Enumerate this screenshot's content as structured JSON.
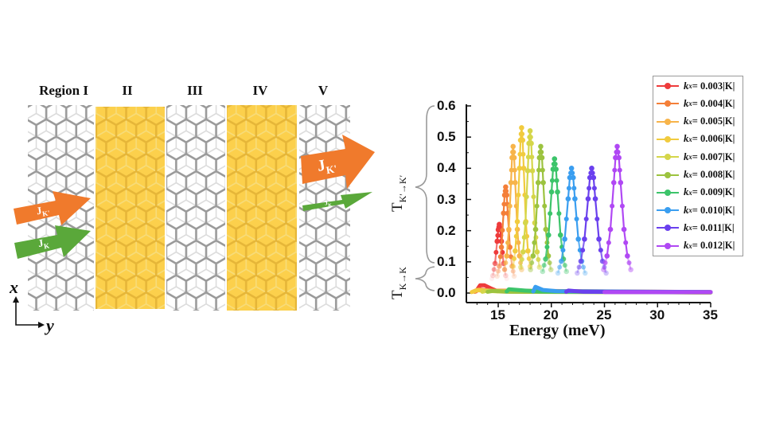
{
  "diagram": {
    "regions": [
      "Region I",
      "II",
      "III",
      "IV",
      "V"
    ],
    "arrow_j": "J",
    "arrow_kprime": "K'",
    "arrow_k": "K",
    "axis_x": "x",
    "axis_y": "y",
    "colors": {
      "barrier": "#fcd04c",
      "lattice": "#9a9a9a",
      "kprime_arrow": "#f07a2c",
      "k_arrow": "#5aa83a"
    }
  },
  "chart_data": {
    "type": "line",
    "xlabel": "Energy (meV)",
    "ylabel_upper": {
      "T": "T",
      "sub": "K′→K′"
    },
    "ylabel_lower": {
      "T": "T",
      "sub": "K→K"
    },
    "xlim": [
      12,
      35
    ],
    "ylim": [
      -0.03,
      0.6
    ],
    "xticks": [
      "15",
      "20",
      "25",
      "30",
      "35"
    ],
    "yticks": [
      "0.0",
      "0.1",
      "0.2",
      "0.3",
      "0.4",
      "0.5",
      "0.6"
    ],
    "grid": false,
    "legend_placement": "top-right",
    "legend_k": "k",
    "legend_sub": "x",
    "series": [
      {
        "name": "= 0.003|K|",
        "color": "#ee3b3b",
        "x": [
          14.3,
          14.5,
          14.7,
          14.9,
          15.0,
          15.1,
          15.2,
          15.3,
          15.5,
          15.7,
          15.9
        ],
        "y": [
          0.035,
          0.056,
          0.095,
          0.166,
          0.203,
          0.22,
          0.203,
          0.166,
          0.095,
          0.056,
          0.035
        ],
        "kk_x": [
          12.9,
          13.3,
          13.7,
          14.3,
          15.0,
          35
        ],
        "kk_y": [
          0.005,
          0.025,
          0.025,
          0.015,
          0.005,
          0.003
        ]
      },
      {
        "name": "= 0.004|K|",
        "color": "#f47f38",
        "x": [
          14.9,
          15.1,
          15.3,
          15.5,
          15.6,
          15.7,
          15.8,
          15.9,
          16.1,
          16.3,
          16.5
        ],
        "y": [
          0.054,
          0.086,
          0.147,
          0.256,
          0.314,
          0.34,
          0.314,
          0.256,
          0.147,
          0.086,
          0.054
        ],
        "kk_x": [
          12.8,
          13.2,
          14.0,
          35
        ],
        "kk_y": [
          0.004,
          0.012,
          0.008,
          0.003
        ]
      },
      {
        "name": "= 0.005|K|",
        "color": "#f7b44a",
        "x": [
          15.6,
          15.8,
          16.0,
          16.2,
          16.3,
          16.4,
          16.5,
          16.6,
          16.8,
          17.0,
          17.2
        ],
        "y": [
          0.075,
          0.119,
          0.204,
          0.354,
          0.434,
          0.47,
          0.434,
          0.354,
          0.204,
          0.119,
          0.075
        ],
        "kk_x": [
          12.6,
          13.0,
          14.0,
          35
        ],
        "kk_y": [
          0.004,
          0.01,
          0.007,
          0.002
        ]
      },
      {
        "name": "= 0.006|K|",
        "color": "#f1cb3e",
        "x": [
          16.4,
          16.6,
          16.8,
          17.0,
          17.1,
          17.2,
          17.3,
          17.4,
          17.6,
          17.8,
          18.0
        ],
        "y": [
          0.085,
          0.135,
          0.229,
          0.4,
          0.49,
          0.53,
          0.49,
          0.4,
          0.229,
          0.135,
          0.085
        ],
        "kk_x": [
          12.5,
          13.0,
          14.5,
          35
        ],
        "kk_y": [
          0.003,
          0.009,
          0.006,
          0.002
        ]
      },
      {
        "name": "= 0.007|K|",
        "color": "#d5d64a",
        "x": [
          17.12,
          17.34,
          17.56,
          17.78,
          17.89,
          18.0,
          18.11,
          18.22,
          18.44,
          18.66,
          18.88
        ],
        "y": [
          0.083,
          0.132,
          0.225,
          0.392,
          0.48,
          0.52,
          0.48,
          0.392,
          0.225,
          0.132,
          0.083
        ],
        "kk_x": [
          13.5,
          14.0,
          15.0,
          35
        ],
        "kk_y": [
          0.004,
          0.008,
          0.005,
          0.002
        ]
      },
      {
        "name": "= 0.008|K|",
        "color": "#9cc33f",
        "x": [
          18.04,
          18.28,
          18.52,
          18.76,
          18.88,
          19.0,
          19.12,
          19.24,
          19.48,
          19.72,
          19.96
        ],
        "y": [
          0.075,
          0.119,
          0.204,
          0.354,
          0.434,
          0.47,
          0.434,
          0.354,
          0.204,
          0.119,
          0.075
        ],
        "kk_x": [
          14.0,
          14.5,
          16.0,
          35
        ],
        "kk_y": [
          0.004,
          0.007,
          0.004,
          0.002
        ]
      },
      {
        "name": "= 0.009|K|",
        "color": "#3cc46a",
        "x": [
          19.18,
          19.46,
          19.74,
          20.02,
          20.16,
          20.3,
          20.44,
          20.58,
          20.86,
          21.14,
          21.42
        ],
        "y": [
          0.069,
          0.109,
          0.186,
          0.324,
          0.397,
          0.43,
          0.397,
          0.324,
          0.186,
          0.109,
          0.069
        ],
        "kk_x": [
          15.8,
          16.0,
          17.5,
          19.0,
          35
        ],
        "kk_y": [
          0.005,
          0.012,
          0.008,
          0.005,
          0.003
        ]
      },
      {
        "name": "= 0.010|K|",
        "color": "#3a9ef0",
        "x": [
          20.62,
          20.94,
          21.26,
          21.58,
          21.74,
          21.9,
          22.06,
          22.22,
          22.54,
          22.86,
          23.18
        ],
        "y": [
          0.064,
          0.102,
          0.173,
          0.302,
          0.37,
          0.4,
          0.37,
          0.302,
          0.173,
          0.102,
          0.064
        ],
        "kk_x": [
          18.3,
          18.5,
          19.2,
          20.5,
          35
        ],
        "kk_y": [
          0.005,
          0.02,
          0.01,
          0.006,
          0.003
        ]
      },
      {
        "name": "= 0.011|K|",
        "color": "#6a40ee",
        "x": [
          22.44,
          22.78,
          23.12,
          23.46,
          23.63,
          23.8,
          23.97,
          24.14,
          24.48,
          24.82,
          25.16
        ],
        "y": [
          0.064,
          0.102,
          0.173,
          0.302,
          0.37,
          0.4,
          0.37,
          0.302,
          0.173,
          0.102,
          0.064
        ],
        "kk_x": [
          21.4,
          21.6,
          23.0,
          35
        ],
        "kk_y": [
          0.004,
          0.008,
          0.004,
          0.003
        ]
      },
      {
        "name": "= 0.012|K|",
        "color": "#b048f4",
        "x": [
          24.92,
          25.24,
          25.56,
          25.88,
          26.04,
          26.2,
          26.36,
          26.52,
          26.84,
          27.16,
          27.48
        ],
        "y": [
          0.075,
          0.119,
          0.204,
          0.354,
          0.434,
          0.47,
          0.434,
          0.354,
          0.204,
          0.119,
          0.075
        ],
        "kk_x": [
          25.0,
          26.0,
          35
        ],
        "kk_y": [
          0.003,
          0.003,
          0.003
        ]
      }
    ]
  }
}
